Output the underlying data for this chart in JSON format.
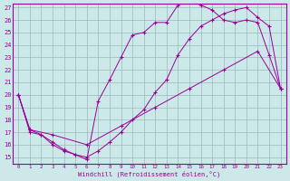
{
  "line1_x": [
    0,
    1,
    2,
    3,
    4,
    5,
    6,
    7,
    8,
    9,
    10,
    11,
    12,
    13,
    14,
    15,
    16,
    17,
    18,
    19,
    20,
    21,
    22,
    23
  ],
  "line1_y": [
    20,
    17.0,
    16.8,
    16.0,
    15.5,
    15.2,
    14.8,
    19.5,
    21.2,
    23.0,
    24.8,
    25.0,
    25.8,
    25.8,
    27.2,
    27.5,
    27.2,
    26.8,
    26.0,
    25.8,
    26.0,
    25.8,
    23.2,
    20.5
  ],
  "line2_x": [
    0,
    1,
    2,
    3,
    4,
    5,
    6,
    7,
    8,
    9,
    10,
    11,
    12,
    13,
    14,
    15,
    16,
    17,
    18,
    19,
    20,
    21,
    22,
    23
  ],
  "line2_y": [
    20,
    17.2,
    16.8,
    16.2,
    15.6,
    15.2,
    15.0,
    15.5,
    16.2,
    17.0,
    18.0,
    18.8,
    20.2,
    21.2,
    23.2,
    24.5,
    25.5,
    26.0,
    26.5,
    26.8,
    27.0,
    26.2,
    25.5,
    20.5
  ],
  "line3_x": [
    0,
    1,
    3,
    6,
    9,
    12,
    15,
    18,
    21,
    23
  ],
  "line3_y": [
    20,
    17.2,
    16.8,
    16.0,
    17.5,
    19.0,
    20.5,
    22.0,
    23.5,
    20.5
  ],
  "line_color": "#990099",
  "bg_color": "#cce8e8",
  "grid_color": "#99bbbb",
  "ylim_min": 14.5,
  "ylim_max": 27.3,
  "xlim_min": -0.5,
  "xlim_max": 23.5,
  "yticks": [
    15,
    16,
    17,
    18,
    19,
    20,
    21,
    22,
    23,
    24,
    25,
    26,
    27
  ],
  "xticks": [
    0,
    1,
    2,
    3,
    4,
    5,
    6,
    7,
    8,
    9,
    10,
    11,
    12,
    13,
    14,
    15,
    16,
    17,
    18,
    19,
    20,
    21,
    22,
    23
  ],
  "xlabel": "Windchill (Refroidissement éolien,°C)"
}
